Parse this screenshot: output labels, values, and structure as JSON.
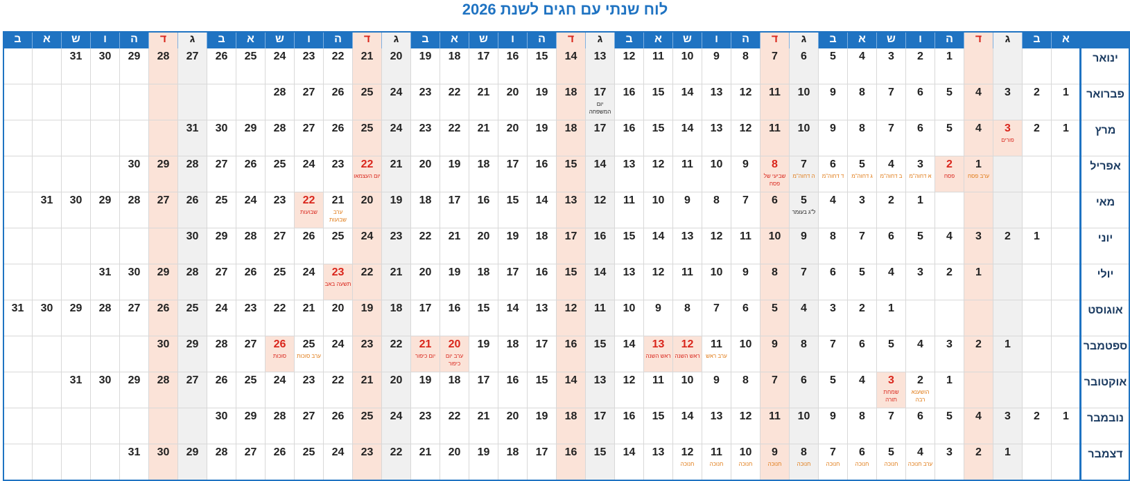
{
  "title": "לוח שנתי עם חגים לשנת 2026",
  "weekday_headers": [
    "ב",
    "א",
    "ש",
    "ו",
    "ה",
    "ד",
    "ג",
    "ב",
    "א",
    "ש",
    "ו",
    "ה",
    "ד",
    "ג",
    "ב",
    "א",
    "ש",
    "ו",
    "ה",
    "ד",
    "ג",
    "ב",
    "א",
    "ש",
    "ו",
    "ה",
    "ד",
    "ג",
    "ב",
    "א",
    "ש",
    "ו",
    "ה",
    "ד",
    "ג",
    "ב",
    "א"
  ],
  "months": [
    {
      "name": "ינואר",
      "start_col": 4,
      "days": 31,
      "notes": {}
    },
    {
      "name": "פברואר",
      "start_col": 0,
      "days": 28,
      "notes": {
        "17": {
          "text": "יום המשפחה",
          "kind": "minor"
        }
      }
    },
    {
      "name": "מרץ",
      "start_col": 0,
      "days": 31,
      "notes": {
        "3": {
          "text": "פורים",
          "kind": "major"
        }
      }
    },
    {
      "name": "אפריל",
      "start_col": 3,
      "days": 30,
      "notes": {
        "1": {
          "text": "ערב פסח",
          "kind": "eve"
        },
        "2": {
          "text": "פסח",
          "kind": "major"
        },
        "3": {
          "text": "א דחוה\"מ",
          "kind": "eve"
        },
        "4": {
          "text": "ב דחוה\"מ",
          "kind": "eve"
        },
        "5": {
          "text": "ג דחוה\"מ",
          "kind": "eve"
        },
        "6": {
          "text": "ד דחוה\"מ",
          "kind": "eve"
        },
        "7": {
          "text": "ה דחוה\"מ",
          "kind": "eve"
        },
        "8": {
          "text": "שביעי של פסח",
          "kind": "major"
        },
        "22": {
          "text": "יום העצמאו",
          "kind": "major"
        }
      }
    },
    {
      "name": "מאי",
      "start_col": 5,
      "days": 31,
      "notes": {
        "5": {
          "text": "ל\"ג בעומר",
          "kind": "minor"
        },
        "21": {
          "text": "ערב שבועות",
          "kind": "eve"
        },
        "22": {
          "text": "שבועות",
          "kind": "major"
        }
      }
    },
    {
      "name": "יוני",
      "start_col": 1,
      "days": 30,
      "notes": {}
    },
    {
      "name": "יולי",
      "start_col": 3,
      "days": 31,
      "notes": {
        "23": {
          "text": "תשעה באב",
          "kind": "major"
        }
      }
    },
    {
      "name": "אוגוסט",
      "start_col": 6,
      "days": 31,
      "notes": {}
    },
    {
      "name": "ספטמבר",
      "start_col": 2,
      "days": 30,
      "notes": {
        "11": {
          "text": "ערב ראש",
          "kind": "eve"
        },
        "12": {
          "text": "ראש השנה",
          "kind": "major"
        },
        "13": {
          "text": "ראש השנה",
          "kind": "major"
        },
        "20": {
          "text": "ערב יום כיפור",
          "kind": "major"
        },
        "21": {
          "text": "יום כיפור",
          "kind": "major"
        },
        "25": {
          "text": "ערב סוכות",
          "kind": "eve"
        },
        "26": {
          "text": "סוכות",
          "kind": "major"
        }
      }
    },
    {
      "name": "אוקטובר",
      "start_col": 4,
      "days": 31,
      "notes": {
        "2": {
          "text": "הושענא רבה",
          "kind": "eve"
        },
        "3": {
          "text": "שמחת תורה",
          "kind": "major"
        }
      }
    },
    {
      "name": "נובמבר",
      "start_col": 0,
      "days": 30,
      "notes": {}
    },
    {
      "name": "דצמבר",
      "start_col": 2,
      "days": 31,
      "notes": {
        "4": {
          "text": "ערב חנוכה",
          "kind": "eve"
        },
        "5": {
          "text": "חנוכה",
          "kind": "eve"
        },
        "6": {
          "text": "חנוכה",
          "kind": "eve"
        },
        "7": {
          "text": "חנוכה",
          "kind": "eve"
        },
        "8": {
          "text": "חנוכה",
          "kind": "eve"
        },
        "9": {
          "text": "חנוכה",
          "kind": "eve"
        },
        "10": {
          "text": "חנוכה",
          "kind": "eve"
        },
        "11": {
          "text": "חנוכה",
          "kind": "eve"
        },
        "12": {
          "text": "חנוכה",
          "kind": "eve"
        }
      }
    }
  ],
  "colors": {
    "header_blue": "#1f73c2",
    "saturday_bg": "#fbe3d8",
    "friday_bg": "#f0f0f0",
    "holiday_red": "#d9261c",
    "eve_orange": "#e07a15"
  }
}
